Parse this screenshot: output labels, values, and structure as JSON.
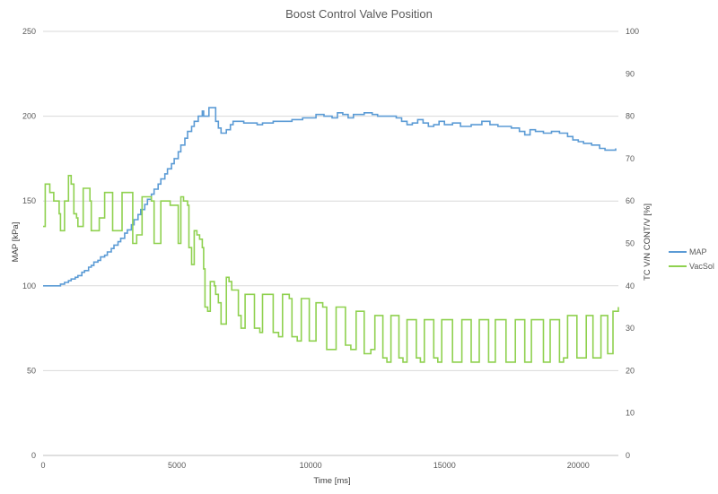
{
  "chart_data": {
    "type": "line",
    "title": "Boost Control Valve Position",
    "xlabel": "Time [ms]",
    "ylabel": "MAP [kPa]",
    "y2label": "TC V/N CONT/V [%]",
    "xlim": [
      0,
      21500
    ],
    "ylim": [
      0,
      250
    ],
    "y2lim": [
      0,
      100
    ],
    "xticks": [
      0,
      5000,
      10000,
      15000,
      20000
    ],
    "yticks": [
      0,
      50,
      100,
      150,
      200,
      250
    ],
    "y2ticks": [
      0,
      10,
      20,
      30,
      40,
      50,
      60,
      70,
      80,
      90,
      100
    ],
    "grid": true,
    "legend_position": "right",
    "series": [
      {
        "name": "MAP",
        "axis": "left",
        "color": "#5b9bd5",
        "step": true,
        "points": [
          [
            0,
            100
          ],
          [
            550,
            100
          ],
          [
            650,
            101
          ],
          [
            800,
            102
          ],
          [
            950,
            103
          ],
          [
            1050,
            104
          ],
          [
            1200,
            105
          ],
          [
            1300,
            106
          ],
          [
            1450,
            108
          ],
          [
            1550,
            109
          ],
          [
            1700,
            111
          ],
          [
            1800,
            112
          ],
          [
            1900,
            114
          ],
          [
            2050,
            115
          ],
          [
            2150,
            117
          ],
          [
            2300,
            118
          ],
          [
            2400,
            120
          ],
          [
            2550,
            122
          ],
          [
            2650,
            124
          ],
          [
            2800,
            126
          ],
          [
            2900,
            128
          ],
          [
            3050,
            131
          ],
          [
            3150,
            133
          ],
          [
            3300,
            136
          ],
          [
            3400,
            139
          ],
          [
            3550,
            142
          ],
          [
            3650,
            145
          ],
          [
            3800,
            148
          ],
          [
            3900,
            151
          ],
          [
            4050,
            154
          ],
          [
            4150,
            157
          ],
          [
            4300,
            160
          ],
          [
            4400,
            163
          ],
          [
            4550,
            166
          ],
          [
            4650,
            169
          ],
          [
            4800,
            172
          ],
          [
            4900,
            175
          ],
          [
            5050,
            179
          ],
          [
            5150,
            183
          ],
          [
            5300,
            187
          ],
          [
            5400,
            191
          ],
          [
            5550,
            194
          ],
          [
            5650,
            197
          ],
          [
            5800,
            200
          ],
          [
            5950,
            203
          ],
          [
            6000,
            200
          ],
          [
            6200,
            205
          ],
          [
            6450,
            197
          ],
          [
            6550,
            193
          ],
          [
            6650,
            190
          ],
          [
            6850,
            192
          ],
          [
            7000,
            195
          ],
          [
            7100,
            197
          ],
          [
            7500,
            196
          ],
          [
            8000,
            195
          ],
          [
            8200,
            196
          ],
          [
            8600,
            197
          ],
          [
            9000,
            197
          ],
          [
            9300,
            198
          ],
          [
            9700,
            199
          ],
          [
            10000,
            199
          ],
          [
            10200,
            201
          ],
          [
            10500,
            200
          ],
          [
            10800,
            199
          ],
          [
            11000,
            202
          ],
          [
            11200,
            201
          ],
          [
            11400,
            199
          ],
          [
            11600,
            201
          ],
          [
            12000,
            202
          ],
          [
            12300,
            201
          ],
          [
            12500,
            200
          ],
          [
            12800,
            200
          ],
          [
            13200,
            199
          ],
          [
            13400,
            197
          ],
          [
            13600,
            195
          ],
          [
            13800,
            196
          ],
          [
            14000,
            198
          ],
          [
            14200,
            196
          ],
          [
            14400,
            194
          ],
          [
            14600,
            195
          ],
          [
            14800,
            197
          ],
          [
            15000,
            195
          ],
          [
            15300,
            196
          ],
          [
            15600,
            194
          ],
          [
            16000,
            195
          ],
          [
            16400,
            197
          ],
          [
            16700,
            195
          ],
          [
            17000,
            194
          ],
          [
            17500,
            193
          ],
          [
            17800,
            191
          ],
          [
            18000,
            189
          ],
          [
            18200,
            192
          ],
          [
            18400,
            191
          ],
          [
            18700,
            190
          ],
          [
            19000,
            191
          ],
          [
            19300,
            190
          ],
          [
            19600,
            188
          ],
          [
            19800,
            186
          ],
          [
            20000,
            185
          ],
          [
            20200,
            184
          ],
          [
            20500,
            183
          ],
          [
            20800,
            181
          ],
          [
            21000,
            180
          ],
          [
            21400,
            181
          ]
        ]
      },
      {
        "name": "VacSol",
        "axis": "right",
        "color": "#8fd14f",
        "step": true,
        "points": [
          [
            0,
            54
          ],
          [
            80,
            64
          ],
          [
            250,
            62
          ],
          [
            400,
            60
          ],
          [
            600,
            57
          ],
          [
            650,
            53
          ],
          [
            800,
            60
          ],
          [
            950,
            66
          ],
          [
            1050,
            64
          ],
          [
            1150,
            57
          ],
          [
            1250,
            56
          ],
          [
            1300,
            54
          ],
          [
            1500,
            63
          ],
          [
            1750,
            60
          ],
          [
            1800,
            53
          ],
          [
            2100,
            56
          ],
          [
            2300,
            62
          ],
          [
            2400,
            62
          ],
          [
            2600,
            53
          ],
          [
            2800,
            53
          ],
          [
            2950,
            62
          ],
          [
            3050,
            62
          ],
          [
            3200,
            62
          ],
          [
            3350,
            50
          ],
          [
            3500,
            52
          ],
          [
            3600,
            52
          ],
          [
            3700,
            61
          ],
          [
            3850,
            61
          ],
          [
            4050,
            60
          ],
          [
            4150,
            50
          ],
          [
            4300,
            50
          ],
          [
            4400,
            60
          ],
          [
            4550,
            60
          ],
          [
            4750,
            59
          ],
          [
            4850,
            59
          ],
          [
            5050,
            50
          ],
          [
            5150,
            61
          ],
          [
            5250,
            60
          ],
          [
            5300,
            60
          ],
          [
            5400,
            59
          ],
          [
            5450,
            49
          ],
          [
            5550,
            45
          ],
          [
            5650,
            53
          ],
          [
            5750,
            52
          ],
          [
            5850,
            51
          ],
          [
            5950,
            49
          ],
          [
            6000,
            44
          ],
          [
            6050,
            35
          ],
          [
            6150,
            34
          ],
          [
            6250,
            41
          ],
          [
            6400,
            40
          ],
          [
            6450,
            38
          ],
          [
            6550,
            36
          ],
          [
            6650,
            31
          ],
          [
            6750,
            31
          ],
          [
            6850,
            42
          ],
          [
            6950,
            41
          ],
          [
            7050,
            39
          ],
          [
            7250,
            39
          ],
          [
            7300,
            33
          ],
          [
            7400,
            30
          ],
          [
            7450,
            30
          ],
          [
            7550,
            38
          ],
          [
            7800,
            38
          ],
          [
            7900,
            30
          ],
          [
            8100,
            29
          ],
          [
            8200,
            38
          ],
          [
            8400,
            38
          ],
          [
            8600,
            29
          ],
          [
            8800,
            28
          ],
          [
            8950,
            38
          ],
          [
            9050,
            38
          ],
          [
            9200,
            37
          ],
          [
            9300,
            28
          ],
          [
            9500,
            27
          ],
          [
            9650,
            37
          ],
          [
            9800,
            37
          ],
          [
            9950,
            27
          ],
          [
            10100,
            27
          ],
          [
            10200,
            36
          ],
          [
            10300,
            36
          ],
          [
            10450,
            35
          ],
          [
            10600,
            25
          ],
          [
            10800,
            25
          ],
          [
            10950,
            35
          ],
          [
            11100,
            35
          ],
          [
            11300,
            26
          ],
          [
            11500,
            25
          ],
          [
            11700,
            34
          ],
          [
            11850,
            34
          ],
          [
            12000,
            24
          ],
          [
            12250,
            25
          ],
          [
            12400,
            33
          ],
          [
            12600,
            33
          ],
          [
            12700,
            23
          ],
          [
            12850,
            22
          ],
          [
            13000,
            33
          ],
          [
            13150,
            33
          ],
          [
            13300,
            23
          ],
          [
            13450,
            22
          ],
          [
            13600,
            32
          ],
          [
            13750,
            32
          ],
          [
            13950,
            23
          ],
          [
            14100,
            22
          ],
          [
            14250,
            32
          ],
          [
            14400,
            32
          ],
          [
            14600,
            23
          ],
          [
            14750,
            22
          ],
          [
            14900,
            32
          ],
          [
            15100,
            32
          ],
          [
            15300,
            22
          ],
          [
            15500,
            22
          ],
          [
            15650,
            32
          ],
          [
            15850,
            32
          ],
          [
            16000,
            22
          ],
          [
            16150,
            22
          ],
          [
            16300,
            32
          ],
          [
            16450,
            32
          ],
          [
            16650,
            22
          ],
          [
            16800,
            22
          ],
          [
            16900,
            32
          ],
          [
            17050,
            32
          ],
          [
            17300,
            22
          ],
          [
            17500,
            22
          ],
          [
            17650,
            32
          ],
          [
            17850,
            32
          ],
          [
            18000,
            22
          ],
          [
            18150,
            22
          ],
          [
            18250,
            32
          ],
          [
            18350,
            32
          ],
          [
            18500,
            32
          ],
          [
            18700,
            22
          ],
          [
            18850,
            22
          ],
          [
            18950,
            32
          ],
          [
            19100,
            32
          ],
          [
            19300,
            22
          ],
          [
            19450,
            23
          ],
          [
            19600,
            33
          ],
          [
            19700,
            33
          ],
          [
            19800,
            33
          ],
          [
            19950,
            23
          ],
          [
            20100,
            23
          ],
          [
            20300,
            33
          ],
          [
            20400,
            33
          ],
          [
            20550,
            23
          ],
          [
            20700,
            23
          ],
          [
            20850,
            33
          ],
          [
            20900,
            33
          ],
          [
            21000,
            33
          ],
          [
            21100,
            24
          ],
          [
            21200,
            24
          ],
          [
            21300,
            34
          ],
          [
            21500,
            35
          ]
        ]
      }
    ]
  }
}
